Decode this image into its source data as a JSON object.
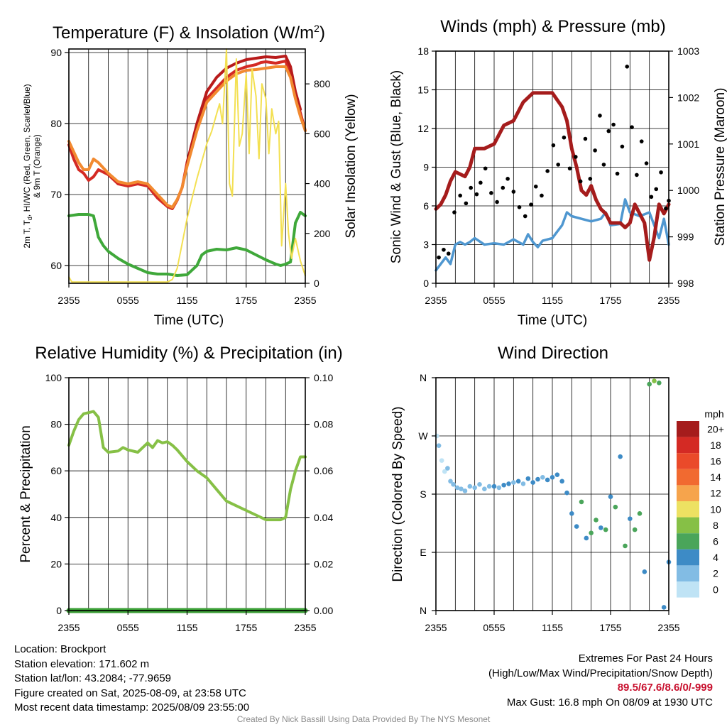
{
  "panels": {
    "temperature": {
      "title": "Temperature (F) & Insolation (W/m²)",
      "ylabel_left": "2m T, Td, HI/WC (Red, Green, Scarlet/Blue) & 9m T (Orange)",
      "ylabel_right": "Solar Insolation (Yellow)",
      "xlabel": "Time (UTC)"
    },
    "winds": {
      "title": "Winds (mph) & Pressure (mb)",
      "ylabel_left": "Sonic Wind & Gust (Blue, Black)",
      "ylabel_right": "Station Pressure (Maroon)",
      "xlabel": "Time (UTC)"
    },
    "humidity": {
      "title": "Relative Humidity (%) & Precipitation (in)",
      "ylabel_left": "Percent & Precipitation"
    },
    "direction": {
      "title": "Wind Direction",
      "ylabel_left": "Direction (Colored By Speed)",
      "colorbar_label": "mph"
    }
  },
  "chart_data": [
    {
      "id": "temperature",
      "type": "line",
      "title": "Temperature (F) & Insolation (W/m²)",
      "xlabel": "Time (UTC)",
      "x_ticks": [
        "2355",
        "0555",
        "1155",
        "1755",
        "2355"
      ],
      "y_left_ticks": [
        60,
        70,
        80,
        90
      ],
      "y_left_range": [
        57.5,
        90.5
      ],
      "y_right_ticks": [
        0,
        200,
        400,
        600,
        800
      ],
      "y_right_range": [
        0,
        940
      ],
      "series": [
        {
          "name": "2m T",
          "color": "#d42a24",
          "axis": "left",
          "x": [
            0,
            0.5,
            1,
            1.5,
            2,
            2.5,
            3,
            4,
            5,
            6,
            7,
            8,
            9,
            10,
            10.5,
            11,
            11.5,
            12,
            13,
            14,
            15,
            16,
            17,
            18,
            19,
            19.5,
            20,
            21,
            22,
            22.5,
            23,
            23.5,
            24
          ],
          "y": [
            77,
            75,
            73.5,
            73,
            72,
            72.5,
            73.5,
            72.8,
            71.5,
            71.2,
            71.5,
            71.2,
            69.5,
            68.3,
            68,
            69.2,
            71,
            74.5,
            79.5,
            83.5,
            85,
            86.5,
            87.5,
            88,
            88.3,
            88.6,
            88.7,
            88.5,
            88.8,
            87,
            84,
            81.5,
            79
          ]
        },
        {
          "name": "HI/WC",
          "color": "#b81b1b",
          "axis": "left",
          "x": [
            12,
            13,
            14,
            15,
            16,
            17,
            18,
            19,
            20,
            21,
            22,
            22.5,
            23,
            23.5
          ],
          "y": [
            74.5,
            80,
            84.5,
            86.5,
            87.8,
            88.5,
            89,
            89.2,
            89.4,
            89.3,
            89.5,
            88,
            84.5,
            82
          ]
        },
        {
          "name": "9m T",
          "color": "#f28a30",
          "axis": "left",
          "x": [
            0,
            0.5,
            1,
            1.5,
            2,
            2.5,
            3,
            4,
            5,
            6,
            7,
            8,
            9,
            10,
            10.5,
            11,
            11.5,
            12,
            13,
            14,
            15,
            16,
            17,
            18,
            19,
            20,
            21,
            22,
            22.5,
            23,
            23.5,
            24
          ],
          "y": [
            77.5,
            76,
            74.5,
            73.5,
            73.5,
            75,
            74.5,
            73,
            71.8,
            71.5,
            71.8,
            71.5,
            70,
            68.5,
            68.2,
            69.3,
            71,
            74,
            79,
            83,
            84.5,
            86,
            87,
            87.5,
            87.6,
            87.8,
            88,
            88,
            86.5,
            83.5,
            81,
            79
          ]
        },
        {
          "name": "2m Td",
          "color": "#3fa83a",
          "axis": "left",
          "x": [
            0,
            1,
            2,
            2.5,
            3,
            3.5,
            4,
            5,
            6,
            7,
            8,
            9,
            10,
            11,
            12,
            13,
            13.5,
            14,
            15,
            16,
            17,
            18,
            19,
            20,
            21,
            21.5,
            22,
            22.5,
            23,
            23.5,
            24
          ],
          "y": [
            67,
            67.2,
            67.2,
            67,
            64,
            62.8,
            62,
            61,
            60.2,
            59.6,
            59,
            58.8,
            58.8,
            58.6,
            58.7,
            60,
            61.5,
            62,
            62.3,
            62.2,
            62.5,
            62.2,
            61.5,
            60.8,
            60.2,
            60,
            60.2,
            60.5,
            66,
            67.5,
            67
          ]
        },
        {
          "name": "Solar Insolation",
          "color": "#f3e052",
          "axis": "right",
          "x": [
            0,
            0.3,
            10,
            10.5,
            11,
            11.5,
            12,
            12.5,
            13,
            13.5,
            14,
            14.5,
            15,
            15.3,
            15.6,
            16,
            16.3,
            16.6,
            17,
            17.3,
            17.6,
            18,
            18.3,
            18.6,
            19,
            19.3,
            19.6,
            20,
            20.3,
            20.6,
            21,
            21.3,
            21.6,
            22,
            22.3,
            22.6,
            23,
            23.5,
            24
          ],
          "y": [
            25,
            5,
            5,
            15,
            60,
            160,
            260,
            340,
            420,
            490,
            560,
            610,
            680,
            720,
            640,
            940,
            400,
            350,
            900,
            550,
            600,
            840,
            520,
            860,
            750,
            500,
            800,
            740,
            520,
            700,
            600,
            650,
            150,
            400,
            200,
            100,
            180,
            90,
            30
          ]
        }
      ]
    },
    {
      "id": "winds",
      "type": "line",
      "title": "Winds (mph) & Pressure (mb)",
      "xlabel": "Time (UTC)",
      "x_ticks": [
        "2355",
        "0555",
        "1155",
        "1755",
        "2355"
      ],
      "y_left_ticks": [
        0,
        3,
        6,
        9,
        12,
        15,
        18
      ],
      "y_left_range": [
        0,
        18
      ],
      "y_right_ticks": [
        998,
        999,
        1000,
        1001,
        1002,
        1003
      ],
      "y_right_range": [
        998,
        1003
      ],
      "series": [
        {
          "name": "Sonic Wind",
          "color": "#4f97d0",
          "axis": "left",
          "x": [
            0,
            0.5,
            1,
            1.5,
            2,
            2.5,
            3,
            3.5,
            4,
            5,
            6,
            7,
            8,
            9,
            9.5,
            10,
            10.5,
            11,
            12,
            12.5,
            13,
            13.5,
            14,
            15,
            16,
            17,
            17.5,
            18,
            19,
            19.5,
            20,
            21,
            22,
            22.5,
            23,
            23.5,
            24
          ],
          "y": [
            1,
            1.5,
            2,
            1.5,
            3,
            3.2,
            3,
            3.2,
            3.5,
            3,
            3.1,
            3,
            3.4,
            3,
            3.8,
            3.2,
            2.8,
            3.3,
            3.5,
            4,
            4.5,
            5.5,
            5.2,
            5,
            4.8,
            5,
            5.5,
            4.5,
            4.6,
            6.5,
            5.5,
            5.2,
            5.5,
            4.5,
            3.5,
            5,
            3
          ]
        },
        {
          "name": "Station Pressure",
          "color": "#a51c1c",
          "axis": "right",
          "x": [
            0,
            0.5,
            1,
            1.5,
            2,
            3,
            3.5,
            4,
            5,
            6,
            7,
            8,
            9,
            10,
            11,
            12,
            13,
            13.5,
            14,
            14.5,
            15,
            15.5,
            16,
            16.5,
            17,
            17.5,
            18,
            18.5,
            19,
            19.5,
            20,
            20.5,
            21,
            21.5,
            22,
            22.5,
            23,
            23.5,
            24
          ],
          "y": [
            999.6,
            999.7,
            999.9,
            1000.2,
            1000.4,
            1000.3,
            1000.5,
            1000.9,
            1000.9,
            1001.0,
            1001.4,
            1001.5,
            1001.9,
            1002.1,
            1002.1,
            1002.1,
            1001.8,
            1001.5,
            1000.9,
            1000.5,
            1000.0,
            999.9,
            1000.1,
            999.8,
            999.6,
            999.5,
            999.3,
            999.3,
            999.3,
            999.2,
            999.3,
            999.7,
            999.5,
            999.3,
            998.5,
            999.0,
            999.7,
            999.5,
            999.7
          ]
        }
      ],
      "gust_points": {
        "name": "Gust",
        "color": "#000000",
        "x": [
          0.3,
          0.8,
          1.3,
          1.9,
          2.5,
          3.1,
          3.6,
          4.2,
          4.6,
          5.1,
          5.7,
          6.3,
          6.9,
          7.4,
          8.0,
          8.6,
          9.2,
          9.8,
          10.3,
          10.9,
          11.5,
          12.1,
          12.6,
          13.2,
          13.8,
          14.4,
          14.9,
          15.4,
          15.9,
          16.4,
          16.9,
          17.3,
          17.8,
          18.3,
          18.7,
          19.2,
          19.7,
          20.2,
          20.7,
          21.2,
          21.7,
          22.2,
          22.7,
          23.2,
          23.7,
          24
        ],
        "y": [
          2.0,
          2.6,
          2.3,
          5.5,
          6.8,
          6.2,
          7.4,
          6.9,
          7.8,
          8.9,
          7.0,
          6.3,
          7.4,
          8.1,
          7.1,
          5.9,
          5.2,
          6.1,
          7.5,
          6.8,
          8.7,
          10.7,
          9.2,
          11.3,
          8.9,
          9.8,
          7.9,
          11.2,
          8.1,
          10.3,
          13.0,
          9.2,
          11.8,
          12.3,
          8.5,
          10.6,
          16.8,
          12.1,
          8.4,
          11.0,
          9.3,
          6.7,
          7.3,
          8.6,
          5.8,
          6.4
        ]
      }
    },
    {
      "id": "humidity",
      "type": "line",
      "title": "Relative Humidity (%) & Precipitation (in)",
      "x_ticks": [
        "2355",
        "0555",
        "1155",
        "1755",
        "2355"
      ],
      "y_left_ticks": [
        0,
        20,
        40,
        60,
        80,
        100
      ],
      "y_left_range": [
        0,
        100
      ],
      "y_right_ticks": [
        "0.00",
        "0.02",
        "0.04",
        "0.06",
        "0.08",
        "0.10"
      ],
      "y_right_range": [
        0,
        0.1
      ],
      "series": [
        {
          "name": "Relative Humidity",
          "color": "#86c046",
          "axis": "left",
          "x": [
            0,
            0.5,
            1,
            1.5,
            2,
            2.5,
            3,
            3.5,
            4,
            5,
            5.5,
            6,
            7,
            8,
            8.5,
            9,
            9.5,
            10,
            10.5,
            11,
            12,
            13,
            14,
            15,
            16,
            17,
            18,
            19,
            20,
            21,
            21.5,
            22,
            22.5,
            23,
            23.5,
            24
          ],
          "y": [
            71,
            77,
            82,
            84.5,
            85,
            85.5,
            83,
            70,
            68,
            68.5,
            70,
            69,
            68,
            72,
            70,
            73,
            72,
            72.5,
            71,
            69,
            64,
            60,
            57,
            52,
            47,
            45,
            43,
            41,
            39,
            39,
            39,
            40,
            52,
            60,
            66,
            66
          ]
        },
        {
          "name": "Precipitation",
          "color": "#3b9e36",
          "axis": "right",
          "x": [
            0,
            24
          ],
          "y": [
            0,
            0
          ]
        }
      ]
    },
    {
      "id": "direction",
      "type": "scatter",
      "title": "Wind Direction",
      "x_ticks": [
        "2355",
        "0555",
        "1155",
        "1755",
        "2355"
      ],
      "y_ticks": [
        "N",
        "E",
        "S",
        "W",
        "N"
      ],
      "y_range_degrees": [
        0,
        360
      ],
      "colorbar": {
        "label": "mph",
        "levels": [
          "20+",
          "18",
          "16",
          "14",
          "12",
          "10",
          "8",
          "6",
          "4",
          "2",
          "0"
        ],
        "colors": [
          "#a51c1c",
          "#d42a24",
          "#ea4a2a",
          "#f16a30",
          "#f6a44c",
          "#ede162",
          "#86c046",
          "#4aa55a",
          "#3d8bc6",
          "#82bce4",
          "#bfe3f5"
        ]
      },
      "points_x": [
        0.1,
        0.3,
        0.6,
        0.9,
        1.2,
        1.5,
        1.8,
        2.2,
        2.6,
        3.0,
        3.5,
        4.0,
        4.5,
        5.0,
        5.5,
        6.0,
        6.5,
        7.0,
        7.5,
        8.0,
        8.5,
        9.0,
        9.5,
        10.0,
        10.5,
        11.0,
        11.5,
        12.0,
        12.5,
        13.0,
        13.5,
        14.0,
        14.5,
        15.0,
        15.5,
        16.0,
        16.5,
        17.0,
        17.5,
        18.0,
        18.5,
        19.0,
        19.5,
        20.0,
        20.5,
        21.0,
        21.5,
        22.0,
        22.5,
        23.0,
        23.5,
        24.0
      ],
      "points_y": [
        270,
        255,
        232,
        215,
        220,
        200,
        195,
        190,
        188,
        185,
        192,
        190,
        195,
        188,
        192,
        192,
        190,
        194,
        196,
        198,
        200,
        196,
        204,
        198,
        203,
        206,
        202,
        206,
        210,
        200,
        182,
        150,
        130,
        168,
        112,
        120,
        140,
        128,
        125,
        176,
        160,
        238,
        100,
        142,
        125,
        150,
        60,
        350,
        355,
        352,
        5,
        75
      ],
      "points_speed": [
        1,
        2,
        1,
        1,
        2,
        3,
        2,
        2,
        3,
        2,
        3,
        2,
        3,
        3,
        3,
        4,
        3,
        4,
        4,
        3,
        4,
        3,
        4,
        4,
        4,
        3,
        4,
        4,
        4,
        4,
        4,
        5,
        4,
        6,
        4,
        6,
        7,
        5,
        6,
        4,
        7,
        4,
        7,
        5,
        6,
        6,
        5,
        7,
        8,
        7,
        5,
        4
      ]
    }
  ],
  "info": {
    "location": "Location: Brockport",
    "elevation": "Station elevation: 171.602 m",
    "latlon": "Station lat/lon: 43.2084; -77.9659",
    "created": "Figure created on Sat, 2025-08-09, at 23:58 UTC",
    "recent": "Most recent data timestamp: 2025/08/09 23:55:00",
    "extremes_title": "Extremes For Past 24 Hours",
    "extremes_subtitle": "(High/Low/Max Wind/Precipitation/Snow Depth)",
    "extremes_values": "89.5/67.6/8.6/0/-999",
    "max_gust": "Max Gust: 16.8 mph On 08/09 at 1930 UTC",
    "credit": "Created By Nick Bassill Using Data Provided By The NYS Mesonet"
  }
}
